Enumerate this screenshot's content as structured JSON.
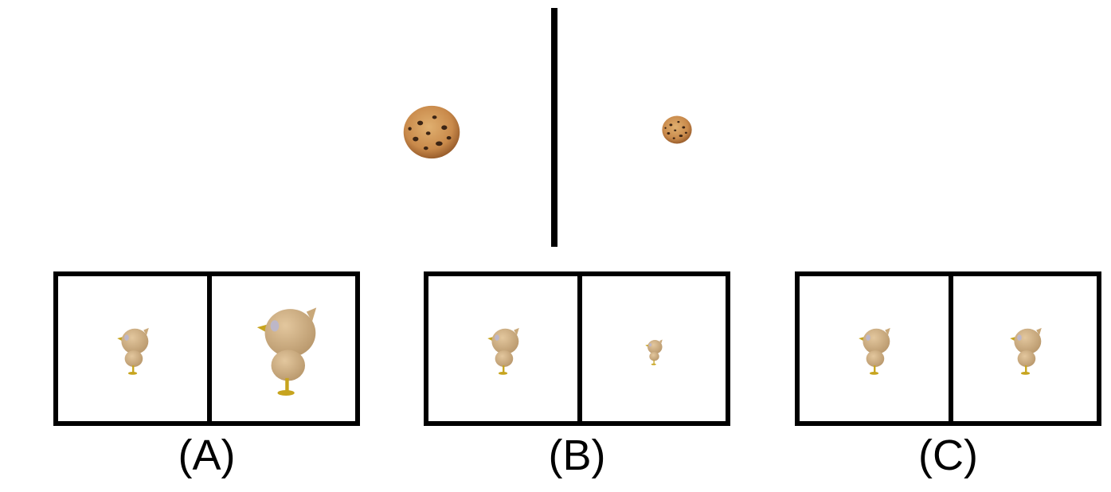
{
  "options": [
    {
      "label": "(A)"
    },
    {
      "label": "(B)"
    },
    {
      "label": "(C)"
    }
  ],
  "colors": {
    "frame": "#000000",
    "cookie": "#c98a4b",
    "chocolate_chip": "#3b2414",
    "bird_body": "#d2b185",
    "bird_beak": "#c7a41e"
  }
}
